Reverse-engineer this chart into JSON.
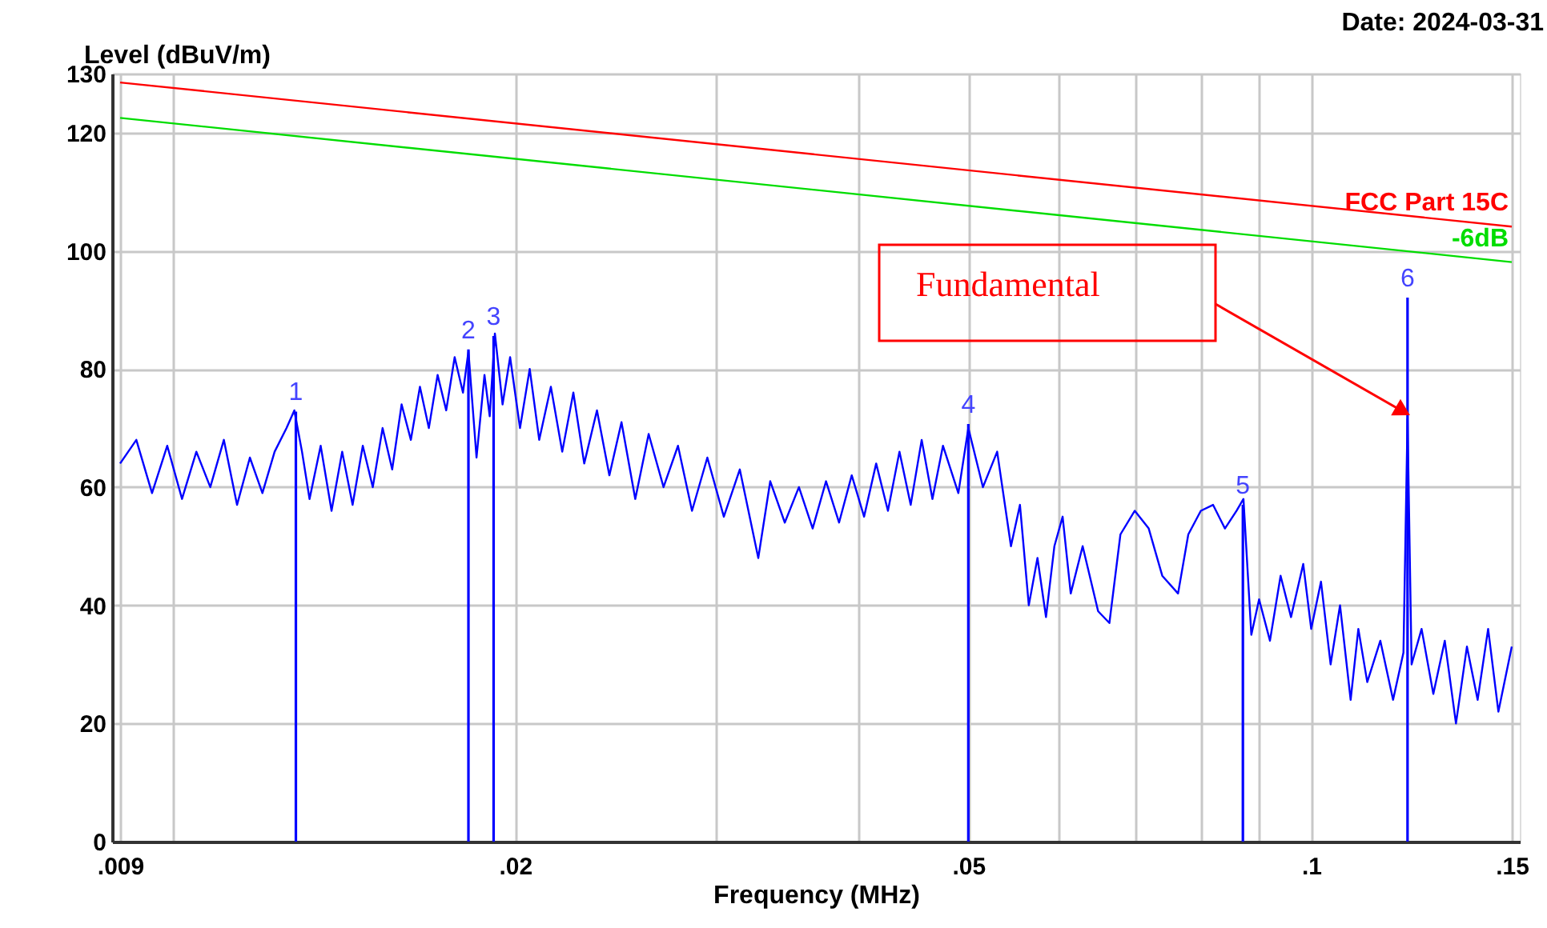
{
  "chart_data": {
    "type": "line",
    "xlabel": "Frequency (MHz)",
    "ylabel": "Level (dBuV/m)",
    "log": "x",
    "grid": true,
    "xlim": [
      0.009,
      0.15
    ],
    "ylim": [
      0,
      130
    ],
    "xticks": [
      {
        "value": 0.009,
        "label": ".009"
      },
      {
        "value": 0.01,
        "label": null
      },
      {
        "value": 0.02,
        "label": ".02"
      },
      {
        "value": 0.03,
        "label": null
      },
      {
        "value": 0.04,
        "label": null
      },
      {
        "value": 0.05,
        "label": ".05"
      },
      {
        "value": 0.06,
        "label": null
      },
      {
        "value": 0.07,
        "label": null
      },
      {
        "value": 0.08,
        "label": null
      },
      {
        "value": 0.09,
        "label": null
      },
      {
        "value": 0.1,
        "label": ".1"
      },
      {
        "value": 0.15,
        "label": ".15"
      }
    ],
    "yticks": [
      0,
      20,
      40,
      60,
      80,
      100,
      120,
      130
    ],
    "series": [
      {
        "color": "#0000ff",
        "x": [
          0.009,
          0.0093,
          0.0096,
          0.0099,
          0.0102,
          0.0105,
          0.0108,
          0.0111,
          0.0114,
          0.0117,
          0.012,
          0.0123,
          0.0126,
          0.0128,
          0.013,
          0.0132,
          0.0135,
          0.0138,
          0.0141,
          0.0144,
          0.0147,
          0.015,
          0.0153,
          0.0156,
          0.0159,
          0.0162,
          0.0165,
          0.0168,
          0.0171,
          0.0174,
          0.0177,
          0.018,
          0.0182,
          0.0185,
          0.0188,
          0.019,
          0.0192,
          0.0195,
          0.0198,
          0.0202,
          0.0206,
          0.021,
          0.0215,
          0.022,
          0.0225,
          0.023,
          0.0236,
          0.0242,
          0.0248,
          0.0255,
          0.0262,
          0.027,
          0.0278,
          0.0286,
          0.0295,
          0.0305,
          0.0315,
          0.0327,
          0.0335,
          0.0345,
          0.0355,
          0.0365,
          0.0375,
          0.0385,
          0.0395,
          0.0405,
          0.0415,
          0.0425,
          0.0435,
          0.0445,
          0.0455,
          0.0465,
          0.0475,
          0.049,
          0.05,
          0.0515,
          0.053,
          0.0545,
          0.0555,
          0.0565,
          0.0575,
          0.0585,
          0.0595,
          0.0605,
          0.0615,
          0.063,
          0.065,
          0.0665,
          0.068,
          0.07,
          0.072,
          0.074,
          0.0764,
          0.078,
          0.08,
          0.082,
          0.084,
          0.086,
          0.0872,
          0.0886,
          0.09,
          0.092,
          0.094,
          0.096,
          0.0984,
          0.1,
          0.102,
          0.104,
          0.106,
          0.1083,
          0.11,
          0.112,
          0.115,
          0.118,
          0.1205,
          0.1215,
          0.1225,
          0.125,
          0.128,
          0.131,
          0.134,
          0.137,
          0.14,
          0.143,
          0.146,
          0.15
        ],
        "values": [
          64,
          68,
          59,
          67,
          58,
          66,
          60,
          68,
          57,
          65,
          59,
          66,
          70,
          73,
          66,
          58,
          67,
          56,
          66,
          57,
          67,
          60,
          70,
          63,
          74,
          68,
          77,
          70,
          79,
          73,
          82,
          76,
          83,
          65,
          79,
          72,
          86,
          74,
          82,
          70,
          80,
          68,
          77,
          66,
          76,
          64,
          73,
          62,
          71,
          58,
          69,
          60,
          67,
          56,
          65,
          55,
          63,
          48,
          61,
          54,
          60,
          53,
          61,
          54,
          62,
          55,
          64,
          56,
          66,
          57,
          68,
          58,
          67,
          59,
          70,
          60,
          66,
          50,
          57,
          40,
          48,
          38,
          50,
          55,
          42,
          50,
          39,
          37,
          52,
          56,
          53,
          45,
          42,
          52,
          56,
          57,
          53,
          56,
          58,
          35,
          41,
          34,
          45,
          38,
          47,
          36,
          44,
          30,
          40,
          24,
          36,
          27,
          34,
          24,
          32,
          71.5,
          30,
          36,
          25,
          34,
          20,
          33,
          24,
          36,
          22,
          33
        ]
      },
      {
        "type": "bar",
        "color": "#0000ff",
        "x": [
          0.01284,
          0.0182,
          0.01915,
          0.05,
          0.0871,
          0.1215
        ],
        "values": [
          72.8,
          83.3,
          85.6,
          70.7,
          57.0,
          92.1
        ]
      },
      {
        "name": "FCC Part 15C",
        "color": "#ff0000",
        "x": [
          0.009,
          0.15
        ],
        "values": [
          128.5,
          104.1
        ]
      },
      {
        "name": "-6dB",
        "color": "#00dd00",
        "x": [
          0.009,
          0.15
        ],
        "values": [
          122.5,
          98.1
        ]
      }
    ],
    "annotations": [
      "Date: 2024-03-31",
      "Fundamental",
      {
        "text": "1",
        "x": 0.01284,
        "y": 72.8
      },
      {
        "text": "2",
        "x": 0.0182,
        "y": 83.3
      },
      {
        "text": "3",
        "x": 0.01915,
        "y": 85.6
      },
      {
        "text": "4",
        "x": 0.05,
        "y": 70.7
      },
      {
        "text": "5",
        "x": 0.0871,
        "y": 57.0
      },
      {
        "text": "6",
        "x": 0.1215,
        "y": 92.1
      }
    ]
  }
}
